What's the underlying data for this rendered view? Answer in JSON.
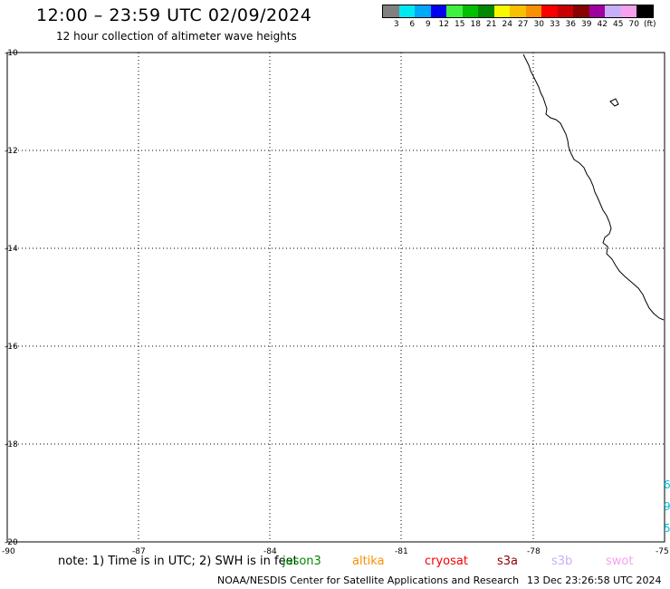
{
  "title": "12:00 – 23:59 UTC 02/09/2024",
  "subtitle": "12 hour collection of altimeter wave heights",
  "legend": {
    "colors": [
      "#808080",
      "#00e8f0",
      "#00a8f8",
      "#0000f0",
      "#40f040",
      "#00c000",
      "#008800",
      "#f8f800",
      "#f8c000",
      "#f89000",
      "#f80000",
      "#c80000",
      "#880000",
      "#a000a0",
      "#c8b0f8",
      "#f8a0f0",
      "#000000"
    ],
    "labels": [
      "3",
      "6",
      "9",
      "12",
      "15",
      "18",
      "21",
      "24",
      "27",
      "30",
      "33",
      "36",
      "39",
      "42",
      "45",
      "70",
      "(ft)"
    ]
  },
  "map": {
    "lat_labels": [
      "-10",
      "-12",
      "-14",
      "-16",
      "-18",
      "-20"
    ],
    "lon_labels": [
      "-90",
      "-87",
      "-84",
      "-81",
      "-78",
      "-75"
    ]
  },
  "footer": {
    "note": "note: 1) Time is in UTC; 2) SWH is in feet",
    "satellites": [
      {
        "name": "jason3",
        "color": "#008800"
      },
      {
        "name": "altika",
        "color": "#f89000"
      },
      {
        "name": "cryosat",
        "color": "#f80000"
      },
      {
        "name": "s3a",
        "color": "#880000"
      },
      {
        "name": "s3b",
        "color": "#c8b0f8"
      },
      {
        "name": "swot",
        "color": "#f8a0f0"
      }
    ],
    "credit": "NOAA/NESDIS Center for Satellite Applications and Research",
    "timestamp": "13 Dec 23:26:58 UTC 2024"
  },
  "edge_marks": [
    "6",
    "9",
    "5"
  ]
}
